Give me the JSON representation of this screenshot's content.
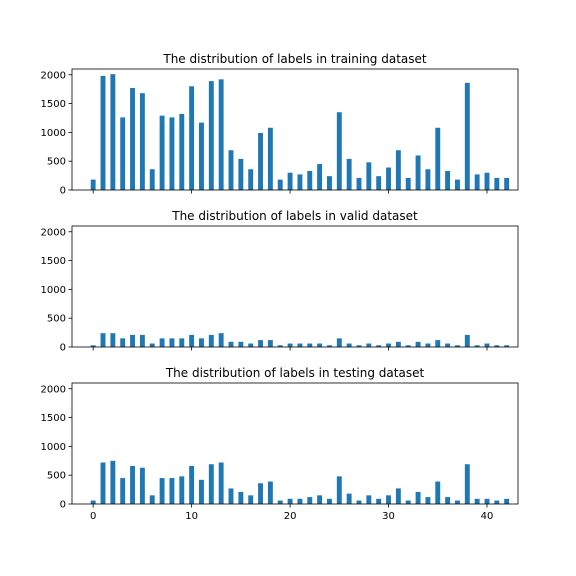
{
  "chart_data": [
    {
      "type": "bar",
      "title": "The distribution of labels in training dataset",
      "xlabel": "",
      "ylabel": "",
      "x": [
        0,
        1,
        2,
        3,
        4,
        5,
        6,
        7,
        8,
        9,
        10,
        11,
        12,
        13,
        14,
        15,
        16,
        17,
        18,
        19,
        20,
        21,
        22,
        23,
        24,
        25,
        26,
        27,
        28,
        29,
        30,
        31,
        32,
        33,
        34,
        35,
        36,
        37,
        38,
        39,
        40,
        41,
        42
      ],
      "values": [
        180,
        1980,
        2010,
        1260,
        1770,
        1680,
        360,
        1290,
        1260,
        1320,
        1800,
        1170,
        1890,
        1920,
        690,
        540,
        360,
        990,
        1080,
        180,
        300,
        270,
        330,
        450,
        240,
        1350,
        540,
        210,
        480,
        240,
        390,
        690,
        210,
        600,
        360,
        1080,
        330,
        180,
        1860,
        270,
        300,
        210,
        210
      ],
      "ylim": [
        0,
        2100
      ],
      "yticks": [
        0,
        500,
        1000,
        1500,
        2000
      ],
      "xticks": [
        0,
        10,
        20,
        30,
        40
      ],
      "show_xtick_labels": false,
      "grid": false
    },
    {
      "type": "bar",
      "title": "The distribution of labels in valid dataset",
      "xlabel": "",
      "ylabel": "",
      "x": [
        0,
        1,
        2,
        3,
        4,
        5,
        6,
        7,
        8,
        9,
        10,
        11,
        12,
        13,
        14,
        15,
        16,
        17,
        18,
        19,
        20,
        21,
        22,
        23,
        24,
        25,
        26,
        27,
        28,
        29,
        30,
        31,
        32,
        33,
        34,
        35,
        36,
        37,
        38,
        39,
        40,
        41,
        42
      ],
      "values": [
        30,
        240,
        240,
        150,
        210,
        210,
        60,
        150,
        150,
        150,
        210,
        150,
        210,
        240,
        90,
        90,
        60,
        120,
        120,
        30,
        60,
        60,
        60,
        60,
        30,
        150,
        60,
        30,
        60,
        30,
        60,
        90,
        30,
        90,
        60,
        120,
        60,
        30,
        210,
        30,
        60,
        30,
        30
      ],
      "ylim": [
        0,
        2100
      ],
      "yticks": [
        0,
        500,
        1000,
        1500,
        2000
      ],
      "xticks": [
        0,
        10,
        20,
        30,
        40
      ],
      "show_xtick_labels": false,
      "grid": false
    },
    {
      "type": "bar",
      "title": "The distribution of labels in testing dataset",
      "xlabel": "",
      "ylabel": "",
      "x": [
        0,
        1,
        2,
        3,
        4,
        5,
        6,
        7,
        8,
        9,
        10,
        11,
        12,
        13,
        14,
        15,
        16,
        17,
        18,
        19,
        20,
        21,
        22,
        23,
        24,
        25,
        26,
        27,
        28,
        29,
        30,
        31,
        32,
        33,
        34,
        35,
        36,
        37,
        38,
        39,
        40,
        41,
        42
      ],
      "values": [
        60,
        720,
        750,
        450,
        660,
        630,
        150,
        450,
        450,
        480,
        660,
        420,
        690,
        720,
        270,
        210,
        150,
        360,
        390,
        60,
        90,
        90,
        120,
        150,
        90,
        480,
        180,
        60,
        150,
        90,
        150,
        270,
        60,
        210,
        120,
        390,
        120,
        60,
        690,
        90,
        90,
        60,
        90
      ],
      "ylim": [
        0,
        2100
      ],
      "yticks": [
        0,
        500,
        1000,
        1500,
        2000
      ],
      "xticks": [
        0,
        10,
        20,
        30,
        40
      ],
      "show_xtick_labels": true,
      "grid": false
    }
  ]
}
